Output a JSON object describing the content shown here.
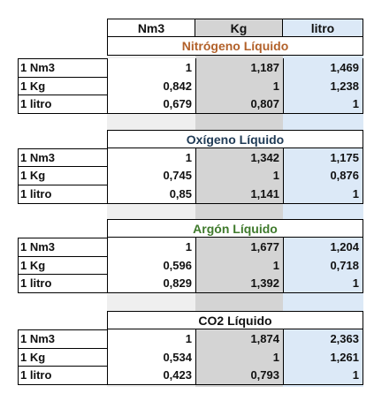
{
  "colors": {
    "nitrogen_title": "#b2612a",
    "oxygen_title": "#1f3a55",
    "argon_title": "#3f7a2c",
    "co2_title": "#111111",
    "col_kg": "#d4d4d4",
    "col_litro": "#dce9f7"
  },
  "header": {
    "nm3": "Nm3",
    "kg": "Kg",
    "litro": "litro"
  },
  "sections": [
    {
      "title": "Nitrógeno Líquido",
      "rows": [
        {
          "label": "1 Nm3",
          "nm3": "1",
          "kg": "1,187",
          "litro": "1,469"
        },
        {
          "label": "1 Kg",
          "nm3": "0,842",
          "kg": "1",
          "litro": "1,238"
        },
        {
          "label": "1 litro",
          "nm3": "0,679",
          "kg": "0,807",
          "litro": "1"
        }
      ]
    },
    {
      "title": "Oxígeno Líquido",
      "rows": [
        {
          "label": "1 Nm3",
          "nm3": "1",
          "kg": "1,342",
          "litro": "1,175"
        },
        {
          "label": "1 Kg",
          "nm3": "0,745",
          "kg": "1",
          "litro": "0,876"
        },
        {
          "label": "1 litro",
          "nm3": "0,85",
          "kg": "1,141",
          "litro": "1"
        }
      ]
    },
    {
      "title": "Argón Líquido",
      "rows": [
        {
          "label": "1 Nm3",
          "nm3": "1",
          "kg": "1,677",
          "litro": "1,204"
        },
        {
          "label": "1 Kg",
          "nm3": "0,596",
          "kg": "1",
          "litro": "0,718"
        },
        {
          "label": "1 litro",
          "nm3": "0,829",
          "kg": "1,392",
          "litro": "1"
        }
      ]
    },
    {
      "title": "CO2 Líquido",
      "rows": [
        {
          "label": "1 Nm3",
          "nm3": "1",
          "kg": "1,874",
          "litro": "2,363"
        },
        {
          "label": "1 Kg",
          "nm3": "0,534",
          "kg": "1",
          "litro": "1,261"
        },
        {
          "label": "1 litro",
          "nm3": "0,423",
          "kg": "0,793",
          "litro": "1"
        }
      ]
    }
  ]
}
